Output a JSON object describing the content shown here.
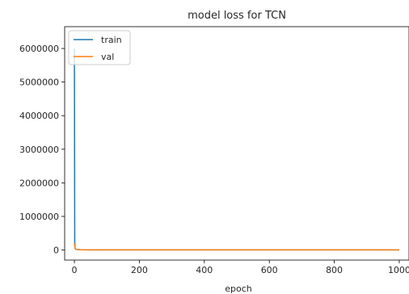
{
  "chart_data": {
    "type": "line",
    "title": "model loss for TCN",
    "xlabel": "epoch",
    "ylabel": "",
    "xlim": [
      -30,
      1030
    ],
    "ylim": [
      -300000,
      6650000
    ],
    "x_ticks": [
      0,
      200,
      400,
      600,
      800,
      1000
    ],
    "y_ticks": [
      0,
      1000000,
      2000000,
      3000000,
      4000000,
      5000000,
      6000000
    ],
    "grid": false,
    "legend_position": "top-left",
    "series": [
      {
        "name": "train",
        "color": "#1f77b4",
        "x": [
          0,
          1,
          2,
          3,
          5,
          10,
          20,
          50,
          100,
          200,
          400,
          600,
          800,
          1000
        ],
        "y": [
          6000000,
          250000,
          60000,
          30000,
          20000,
          12000,
          8000,
          5000,
          4000,
          3000,
          3000,
          3000,
          3000,
          3000
        ]
      },
      {
        "name": "val",
        "color": "#ff7f0e",
        "x": [
          0,
          1,
          2,
          3,
          5,
          10,
          20,
          50,
          100,
          200,
          400,
          600,
          800,
          1000
        ],
        "y": [
          200000,
          120000,
          60000,
          30000,
          20000,
          12000,
          8000,
          5000,
          4000,
          3000,
          3000,
          3000,
          3000,
          3000
        ]
      }
    ]
  }
}
